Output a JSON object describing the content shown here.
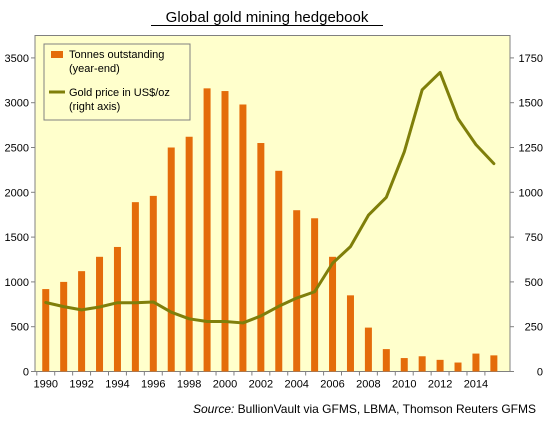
{
  "chart_data": {
    "type": "bar",
    "title": "Global gold mining hedgebook",
    "source": "Source: BullionVault via GFMS, LBMA, Thomson Reuters GFMS",
    "source_prefix": "Source:",
    "source_rest": " BullionVault via GFMS, LBMA, Thomson Reuters GFMS",
    "x_tick_labels": [
      "1990",
      "1992",
      "1994",
      "1996",
      "1998",
      "2000",
      "2002",
      "2004",
      "2006",
      "2008",
      "2010",
      "2012",
      "2014"
    ],
    "left_axis": {
      "ticks": [
        0,
        500,
        1000,
        1500,
        2000,
        2500,
        3000,
        3500
      ],
      "ylim": [
        0,
        3750
      ]
    },
    "right_axis": {
      "ticks": [
        0,
        250,
        500,
        750,
        1000,
        1250,
        1500,
        1750
      ],
      "ylim": [
        0,
        1875
      ]
    },
    "legend_placement": "top-left",
    "grid": false,
    "x": [
      1990,
      1991,
      1992,
      1993,
      1994,
      1995,
      1996,
      1997,
      1998,
      1999,
      2000,
      2001,
      2002,
      2003,
      2004,
      2005,
      2006,
      2007,
      2008,
      2009,
      2010,
      2011,
      2012,
      2013,
      2014,
      2015
    ],
    "series": [
      {
        "name": "Tonnes outstanding (year-end)",
        "legend_lines": [
          "Tonnes outstanding",
          "(year-end)"
        ],
        "kind": "bar",
        "axis": "left",
        "color": "#E46C0A",
        "values": [
          920,
          1000,
          1120,
          1280,
          1390,
          1890,
          1960,
          2500,
          2620,
          3160,
          3130,
          2980,
          2550,
          2240,
          1800,
          1710,
          1280,
          850,
          490,
          250,
          150,
          170,
          130,
          100,
          200,
          180
        ]
      },
      {
        "name": "Gold price in US$/oz (right axis)",
        "legend_lines": [
          "Gold price in US$/oz",
          "(right axis)"
        ],
        "kind": "line",
        "axis": "right",
        "color": "#7F7F0A",
        "values": [
          385,
          362,
          344,
          360,
          384,
          384,
          388,
          331,
          294,
          279,
          279,
          271,
          310,
          364,
          410,
          445,
          604,
          697,
          872,
          972,
          1225,
          1572,
          1669,
          1411,
          1266,
          1160
        ]
      }
    ]
  }
}
